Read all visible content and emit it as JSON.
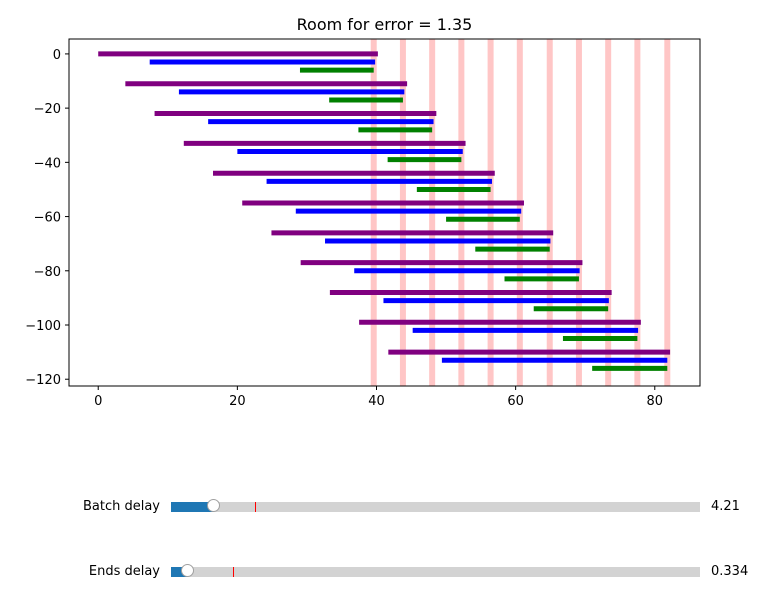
{
  "chart_data": {
    "type": "bar",
    "title": "Room for error = 1.35",
    "xlabel": "",
    "ylabel": "",
    "xlim": [
      -4.2,
      86.5
    ],
    "ylim": [
      -122.5,
      5.5
    ],
    "xticks": [
      0,
      20,
      40,
      60,
      80
    ],
    "yticks": [
      0,
      -20,
      -40,
      -60,
      -80,
      -100,
      -120
    ],
    "xtick_labels": [
      "0",
      "20",
      "40",
      "60",
      "80"
    ],
    "ytick_labels": [
      "0",
      "−20",
      "−40",
      "−60",
      "−80",
      "−100",
      "−120"
    ],
    "colors": {
      "purple": "#800080",
      "blue": "#0000ff",
      "green": "#008000",
      "vline": "#ff8080"
    },
    "vlines": [
      39.6,
      43.8,
      48.0,
      52.2,
      56.4,
      60.6,
      64.9,
      69.1,
      73.3,
      77.5,
      81.8
    ],
    "bars": [
      {
        "y": 0,
        "start": 0,
        "end": 40.2,
        "color": "purple"
      },
      {
        "y": -3,
        "start": 7.4,
        "end": 39.8,
        "color": "blue"
      },
      {
        "y": -6,
        "start": 29.0,
        "end": 39.6,
        "color": "green"
      },
      {
        "y": -11,
        "start": 3.9,
        "end": 44.4,
        "color": "purple"
      },
      {
        "y": -14,
        "start": 11.6,
        "end": 44.0,
        "color": "blue"
      },
      {
        "y": -17,
        "start": 33.2,
        "end": 43.8,
        "color": "green"
      },
      {
        "y": -22,
        "start": 8.1,
        "end": 48.6,
        "color": "purple"
      },
      {
        "y": -25,
        "start": 15.8,
        "end": 48.2,
        "color": "blue"
      },
      {
        "y": -28,
        "start": 37.4,
        "end": 48.0,
        "color": "green"
      },
      {
        "y": -33,
        "start": 12.3,
        "end": 52.8,
        "color": "purple"
      },
      {
        "y": -36,
        "start": 20.0,
        "end": 52.4,
        "color": "blue"
      },
      {
        "y": -39,
        "start": 41.6,
        "end": 52.2,
        "color": "green"
      },
      {
        "y": -44,
        "start": 16.5,
        "end": 57.0,
        "color": "purple"
      },
      {
        "y": -47,
        "start": 24.2,
        "end": 56.6,
        "color": "blue"
      },
      {
        "y": -50,
        "start": 45.8,
        "end": 56.4,
        "color": "green"
      },
      {
        "y": -55,
        "start": 20.7,
        "end": 61.2,
        "color": "purple"
      },
      {
        "y": -58,
        "start": 28.4,
        "end": 60.8,
        "color": "blue"
      },
      {
        "y": -61,
        "start": 50.0,
        "end": 60.6,
        "color": "green"
      },
      {
        "y": -66,
        "start": 24.9,
        "end": 65.4,
        "color": "purple"
      },
      {
        "y": -69,
        "start": 32.6,
        "end": 65.0,
        "color": "blue"
      },
      {
        "y": -72,
        "start": 54.2,
        "end": 64.9,
        "color": "green"
      },
      {
        "y": -77,
        "start": 29.1,
        "end": 69.6,
        "color": "purple"
      },
      {
        "y": -80,
        "start": 36.8,
        "end": 69.2,
        "color": "blue"
      },
      {
        "y": -83,
        "start": 58.4,
        "end": 69.1,
        "color": "green"
      },
      {
        "y": -88,
        "start": 33.3,
        "end": 73.8,
        "color": "purple"
      },
      {
        "y": -91,
        "start": 41.0,
        "end": 73.4,
        "color": "blue"
      },
      {
        "y": -94,
        "start": 62.6,
        "end": 73.3,
        "color": "green"
      },
      {
        "y": -99,
        "start": 37.5,
        "end": 78.0,
        "color": "purple"
      },
      {
        "y": -102,
        "start": 45.2,
        "end": 77.6,
        "color": "blue"
      },
      {
        "y": -105,
        "start": 66.8,
        "end": 77.5,
        "color": "green"
      },
      {
        "y": -110,
        "start": 41.7,
        "end": 82.2,
        "color": "purple"
      },
      {
        "y": -113,
        "start": 49.4,
        "end": 81.8,
        "color": "blue"
      },
      {
        "y": -116,
        "start": 71.0,
        "end": 81.8,
        "color": "green"
      }
    ]
  },
  "sliders": [
    {
      "label": "Batch delay",
      "value": 4.21,
      "value_text": "4.21",
      "fraction": 0.081,
      "init_fraction": 0.158,
      "fill_color": "#1f77b4",
      "marker_color": "#ff0000"
    },
    {
      "label": "Ends delay",
      "value": 0.334,
      "value_text": "0.334",
      "fraction": 0.032,
      "init_fraction": 0.118,
      "fill_color": "#1f77b4",
      "marker_color": "#ff0000"
    }
  ]
}
